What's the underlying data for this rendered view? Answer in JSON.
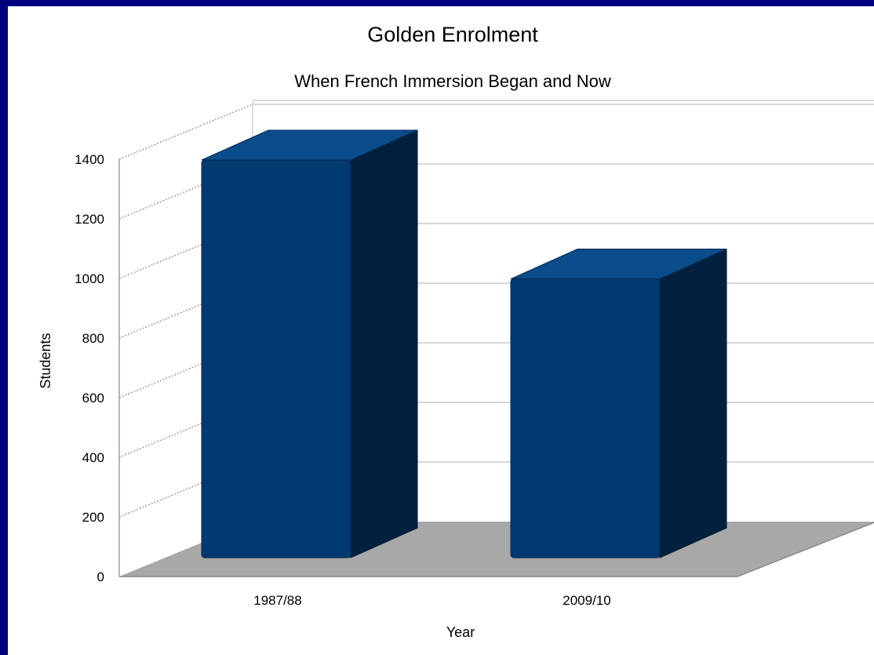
{
  "chart_data": {
    "type": "bar",
    "title": "Golden Enrolment",
    "subtitle": "When French Immersion Began and Now",
    "xlabel": "Year",
    "ylabel": "Students",
    "categories": [
      "1987/88",
      "2009/10"
    ],
    "values": [
      1355,
      950
    ],
    "ylim": [
      0,
      1400
    ],
    "yticks": [
      "0",
      "200",
      "400",
      "600",
      "800",
      "1000",
      "1200",
      "1400"
    ],
    "grid": true,
    "three_d": true,
    "colors": {
      "bar_front": "#003a70",
      "bar_side": "#00203d",
      "bar_top": "#0b4c8a",
      "floor": "#a8a8a8",
      "background": "#000080"
    }
  }
}
